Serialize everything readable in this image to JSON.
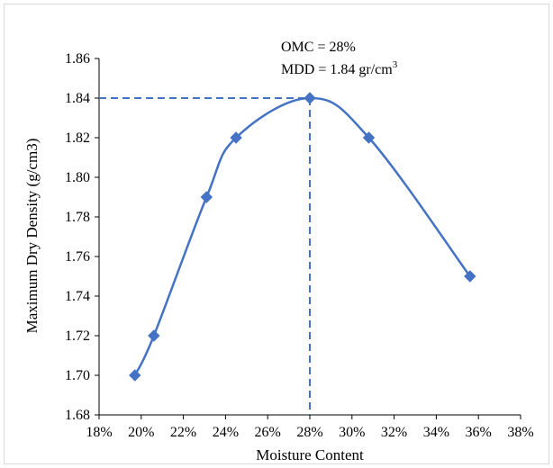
{
  "chart_data": {
    "type": "scatter",
    "title": "",
    "xlabel": "Moisture Content",
    "ylabel": "Maximum Dry Density (g/cm3)",
    "xlim": [
      0.18,
      0.38
    ],
    "ylim": [
      1.68,
      1.86
    ],
    "x_ticks": [
      "18%",
      "20%",
      "22%",
      "24%",
      "26%",
      "28%",
      "30%",
      "32%",
      "34%",
      "36%",
      "38%"
    ],
    "x_tick_values": [
      0.18,
      0.2,
      0.22,
      0.24,
      0.26,
      0.28,
      0.3,
      0.32,
      0.34,
      0.36,
      0.38
    ],
    "y_ticks": [
      "1.68",
      "1.70",
      "1.72",
      "1.74",
      "1.76",
      "1.78",
      "1.80",
      "1.82",
      "1.84",
      "1.86"
    ],
    "y_tick_values": [
      1.68,
      1.7,
      1.72,
      1.74,
      1.76,
      1.78,
      1.8,
      1.82,
      1.84,
      1.86
    ],
    "grid": false,
    "legend": "none",
    "series": [
      {
        "x": [
          0.197,
          0.206,
          0.231,
          0.245,
          0.28,
          0.308,
          0.356
        ],
        "y": [
          1.7,
          1.72,
          1.79,
          1.82,
          1.84,
          1.82,
          1.75
        ],
        "color": "#4472c4",
        "marker": "diamond",
        "line": "smooth"
      }
    ],
    "reference_point": {
      "x": 0.28,
      "y": 1.84,
      "line_style": "dashed",
      "color": "#4472c4"
    },
    "annotation": {
      "line1": "OMC  = 28%",
      "line2_prefix": "MDD = 1.84 gr/cm",
      "line2_superscript": "3"
    }
  }
}
